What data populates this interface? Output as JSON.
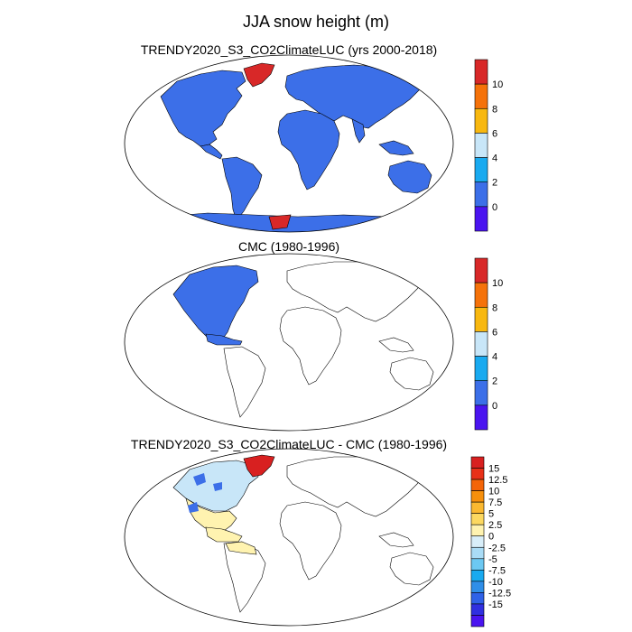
{
  "title": "JJA snow height (m)",
  "panels": [
    {
      "title": "TRENDY2020_S3_CO2ClimateLUC (yrs 2000-2018)",
      "colorbar": {
        "colors": [
          "#4a14f0",
          "#3c6fe8",
          "#19aaf0",
          "#c8e6f8",
          "#f8b810",
          "#f5720a",
          "#d82828"
        ],
        "labels": [
          "0",
          "2",
          "4",
          "6",
          "8",
          "10"
        ]
      }
    },
    {
      "title": "CMC (1980-1996)",
      "colorbar": {
        "colors": [
          "#4a14f0",
          "#3c6fe8",
          "#19aaf0",
          "#c8e6f8",
          "#f8b810",
          "#f5720a",
          "#d82828"
        ],
        "labels": [
          "0",
          "2",
          "4",
          "6",
          "8",
          "10"
        ]
      }
    },
    {
      "title": "TRENDY2020_S3_CO2ClimateLUC - CMC (1980-1996)",
      "colorbar": {
        "colors": [
          "#4a14f0",
          "#3030e0",
          "#2f62e8",
          "#2f8ee8",
          "#19aaf0",
          "#6cc8f2",
          "#aadcf6",
          "#d8eef9",
          "#fff3b0",
          "#fcd860",
          "#fab830",
          "#f7900c",
          "#f46508",
          "#e83018",
          "#d82020"
        ],
        "labels": [
          "15",
          "12.5",
          "10",
          "7.5",
          "5",
          "2.5",
          "0",
          "-2.5",
          "-5",
          "-7.5",
          "-10",
          "-12.5",
          "-15"
        ]
      }
    }
  ],
  "colors": {
    "snow_blue": "#3c6fe8",
    "snow_red": "#d82828",
    "diff_pale_blue": "#c8e6f8",
    "diff_pale_yellow": "#fff3b0",
    "diff_red": "#d82020"
  }
}
